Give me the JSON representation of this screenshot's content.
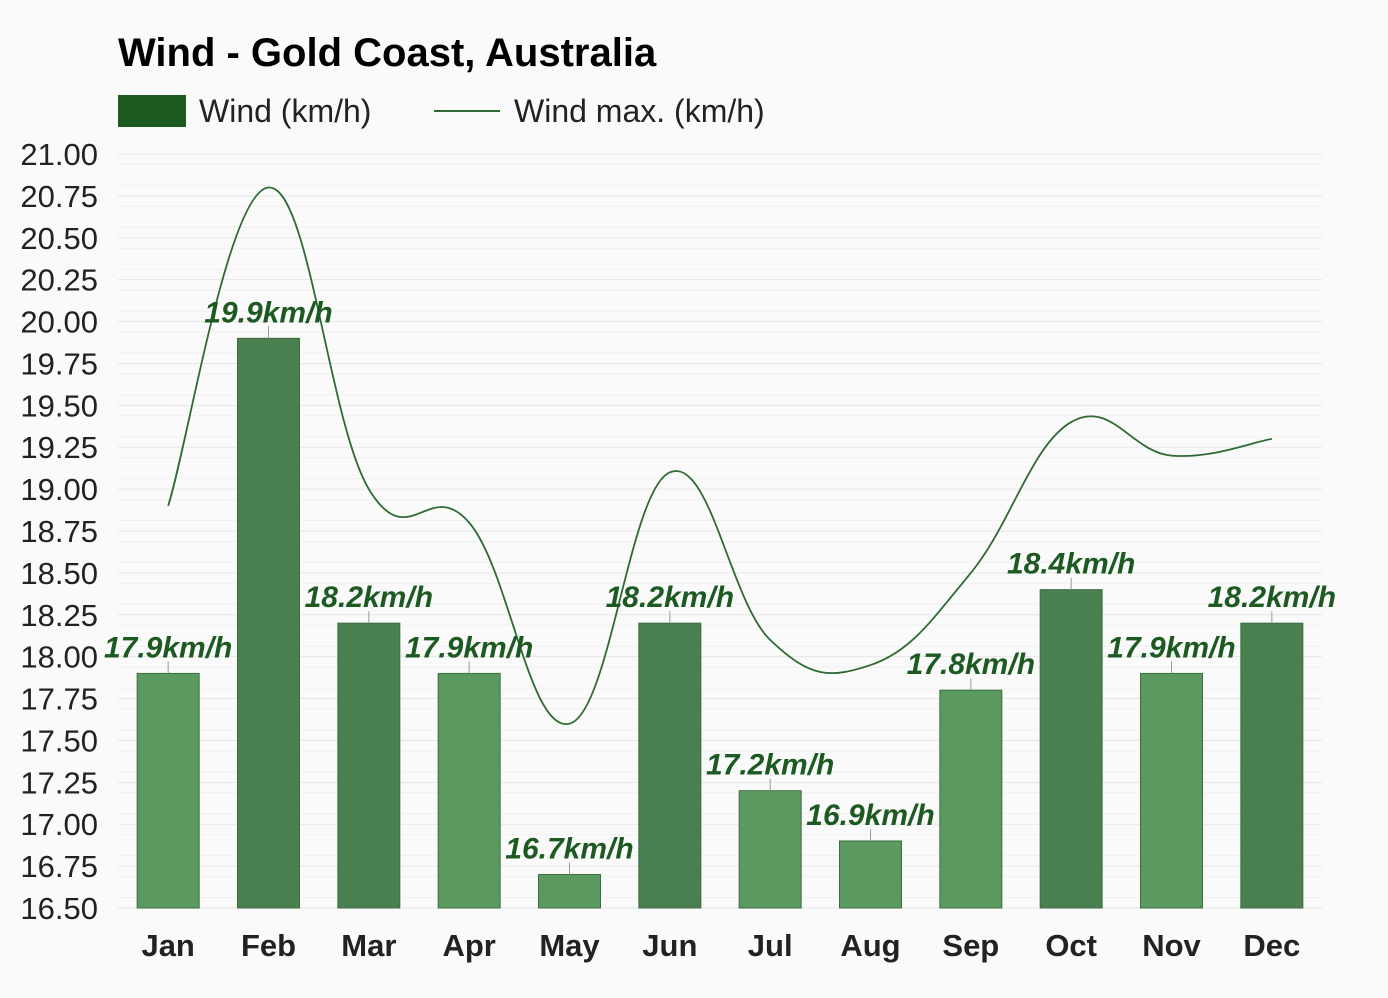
{
  "chart_data": {
    "type": "bar",
    "title": "Wind - Gold Coast, Australia",
    "categories": [
      "Jan",
      "Feb",
      "Mar",
      "Apr",
      "May",
      "Jun",
      "Jul",
      "Aug",
      "Sep",
      "Oct",
      "Nov",
      "Dec"
    ],
    "series": [
      {
        "name": "Wind (km/h)",
        "type": "bar",
        "values": [
          17.9,
          19.9,
          18.2,
          17.9,
          16.7,
          18.2,
          17.2,
          16.9,
          17.8,
          18.4,
          17.9,
          18.2
        ],
        "data_labels": [
          "17.9km/h",
          "19.9km/h",
          "18.2km/h",
          "17.9km/h",
          "16.7km/h",
          "18.2km/h",
          "17.2km/h",
          "16.9km/h",
          "17.8km/h",
          "18.4km/h",
          "17.9km/h",
          "18.2km/h"
        ],
        "colors": [
          "#5a9a60",
          "#4a7f4f",
          "#4a7f4f",
          "#5a9a60",
          "#5a9a60",
          "#4a7f4f",
          "#5a9a60",
          "#5a9a60",
          "#5a9a60",
          "#4a7f4f",
          "#5a9a60",
          "#4a7f4f"
        ]
      },
      {
        "name": "Wind max. (km/h)",
        "type": "line",
        "values": [
          18.9,
          20.8,
          19.0,
          18.8,
          17.6,
          19.1,
          18.1,
          17.95,
          18.5,
          19.4,
          19.2,
          19.3
        ],
        "color": "#2e6b34"
      }
    ],
    "ylim": [
      16.5,
      21.0
    ],
    "yticks": [
      "21.00",
      "20.75",
      "20.50",
      "20.25",
      "20.00",
      "19.75",
      "19.50",
      "19.25",
      "19.00",
      "18.75",
      "18.50",
      "18.25",
      "18.00",
      "17.75",
      "17.50",
      "17.25",
      "17.00",
      "16.75",
      "16.50"
    ],
    "grid": true,
    "legend_position": "top-left",
    "legend_swatch_color": "#1d5a22"
  }
}
